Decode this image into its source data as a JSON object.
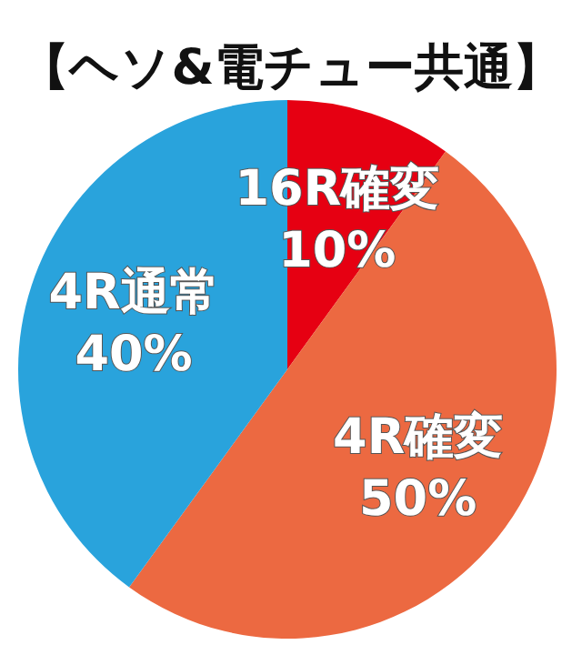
{
  "chart_data": {
    "type": "pie",
    "title": "【ヘソ&電チュー共通】",
    "categories": [
      "16R確変",
      "4R確変",
      "4R通常"
    ],
    "values": [
      10,
      50,
      40
    ],
    "value_labels": [
      "10%",
      "50%",
      "40%"
    ],
    "colors": [
      "#e60012",
      "#ec6941",
      "#29a3dc"
    ],
    "legend": false
  }
}
